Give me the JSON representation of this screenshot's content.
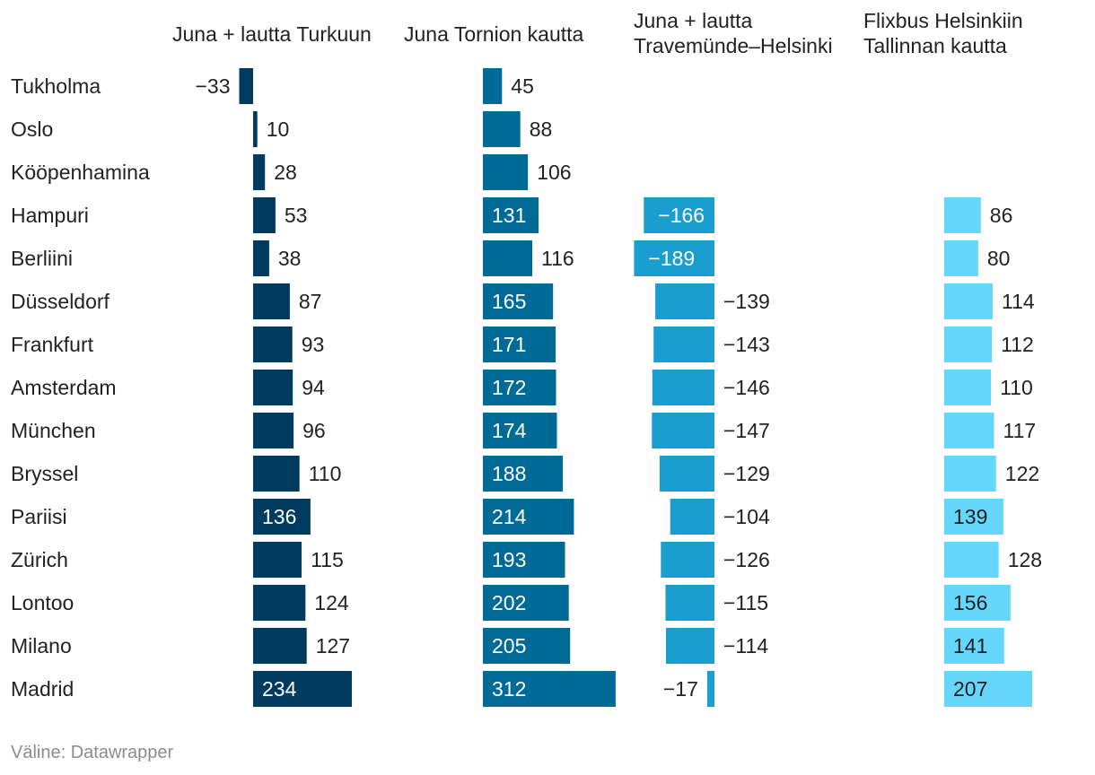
{
  "chart_data": {
    "type": "bar",
    "categories": [
      "Tukholma",
      "Oslo",
      "Kööpenhamina",
      "Hampuri",
      "Berliini",
      "Düsseldorf",
      "Frankfurt",
      "Amsterdam",
      "München",
      "Bryssel",
      "Pariisi",
      "Zürich",
      "Lontoo",
      "Milano",
      "Madrid"
    ],
    "series": [
      {
        "name": "Juna + lautta Turkuun",
        "header_lines": [
          "Juna + lautta Turkuun"
        ],
        "color": "#003a5e",
        "values": [
          -33,
          10,
          28,
          53,
          38,
          87,
          93,
          94,
          96,
          110,
          136,
          115,
          124,
          127,
          234
        ],
        "labels": [
          "−33",
          "10",
          "28",
          "53",
          "38",
          "87",
          "93",
          "94",
          "96",
          "110",
          "136",
          "115",
          "124",
          "127",
          "234"
        ]
      },
      {
        "name": "Juna Tornion kautta",
        "header_lines": [
          "Juna Tornion kautta"
        ],
        "color": "#006a96",
        "values": [
          45,
          88,
          106,
          131,
          116,
          165,
          171,
          172,
          174,
          188,
          214,
          193,
          202,
          205,
          312
        ],
        "labels": [
          "45",
          "88",
          "106",
          "131",
          "116",
          "165",
          "171",
          "172",
          "174",
          "188",
          "214",
          "193",
          "202",
          "205",
          "312"
        ]
      },
      {
        "name": "Juna + lautta Travemünde–Helsinki",
        "header_lines": [
          "Juna + lautta",
          "Travemünde–Helsinki"
        ],
        "color": "#1a9ed0",
        "values": [
          null,
          null,
          null,
          -166,
          -189,
          -139,
          -143,
          -146,
          -147,
          -129,
          -104,
          -126,
          -115,
          -114,
          -17
        ],
        "labels": [
          null,
          null,
          null,
          "−166",
          "−189",
          "−139",
          "−143",
          "−146",
          "−147",
          "−129",
          "−104",
          "−126",
          "−115",
          "−114",
          "−17"
        ]
      },
      {
        "name": "Flixbus Helsinkiin Tallinnan kautta",
        "header_lines": [
          "Flixbus Helsinkiin",
          "Tallinnan kautta"
        ],
        "color": "#66d7fc",
        "values": [
          null,
          null,
          null,
          86,
          80,
          114,
          112,
          110,
          117,
          122,
          139,
          128,
          156,
          141,
          207
        ],
        "labels": [
          null,
          null,
          null,
          "86",
          "80",
          "114",
          "112",
          "110",
          "117",
          "122",
          "139",
          "128",
          "156",
          "141",
          "207"
        ]
      }
    ],
    "title": "",
    "xlabel": "",
    "ylabel": ""
  },
  "source": "Väline: Datawrapper"
}
